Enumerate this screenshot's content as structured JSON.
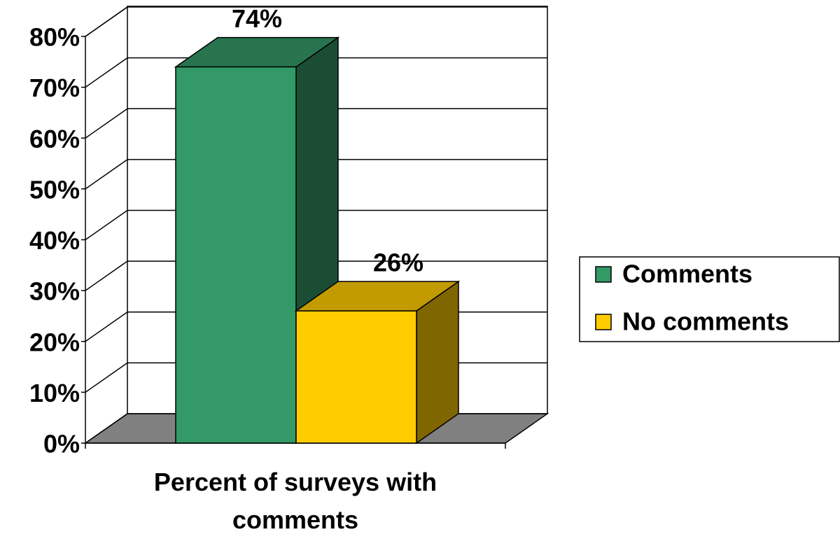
{
  "chart_data": {
    "type": "bar3d",
    "categories": [
      "Percent of surveys with comments"
    ],
    "series": [
      {
        "name": "Comments",
        "color": "#339966",
        "values": [
          74
        ],
        "value_labels": [
          "74%"
        ]
      },
      {
        "name": "No comments",
        "color": "#ffcc00",
        "values": [
          26
        ],
        "value_labels": [
          "26%"
        ]
      }
    ],
    "ylim": [
      0,
      80
    ],
    "yticks": [
      {
        "value": 0,
        "label": "0%"
      },
      {
        "value": 10,
        "label": "10%"
      },
      {
        "value": 20,
        "label": "20%"
      },
      {
        "value": 30,
        "label": "30%"
      },
      {
        "value": 40,
        "label": "40%"
      },
      {
        "value": 50,
        "label": "50%"
      },
      {
        "value": 60,
        "label": "60%"
      },
      {
        "value": 70,
        "label": "70%"
      },
      {
        "value": 80,
        "label": "80%"
      }
    ],
    "grid": true,
    "legend": "right"
  }
}
